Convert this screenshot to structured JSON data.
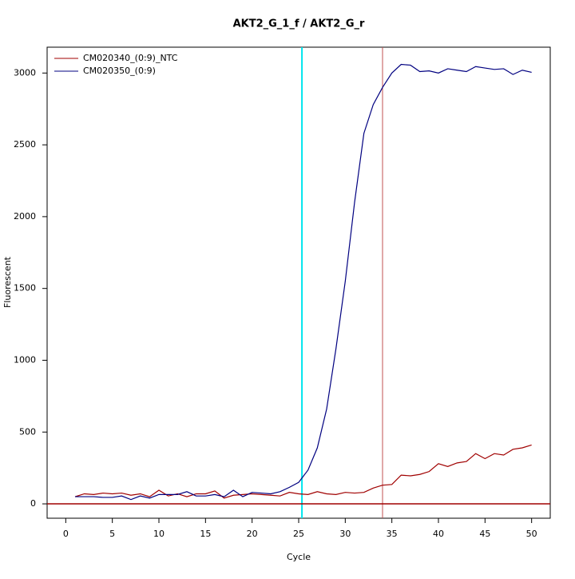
{
  "chart_data": {
    "type": "line",
    "title": "AKT2_G_1_f / AKT2_G_r",
    "x_label": "Cycle",
    "y_label": "Fluorescent",
    "x": [
      1,
      2,
      3,
      4,
      5,
      6,
      7,
      8,
      9,
      10,
      11,
      12,
      13,
      14,
      15,
      16,
      17,
      18,
      19,
      20,
      21,
      22,
      23,
      24,
      25,
      26,
      27,
      28,
      29,
      30,
      31,
      32,
      33,
      34,
      35,
      36,
      37,
      38,
      39,
      40,
      41,
      42,
      43,
      44,
      45,
      46,
      47,
      48,
      49,
      50
    ],
    "series": [
      {
        "name": "CM020340_(0:9)_NTC",
        "color": "#a00000",
        "values": [
          50,
          70,
          65,
          75,
          70,
          75,
          60,
          70,
          50,
          95,
          55,
          70,
          50,
          70,
          70,
          90,
          40,
          60,
          65,
          70,
          65,
          60,
          55,
          80,
          70,
          65,
          85,
          70,
          65,
          80,
          75,
          80,
          110,
          130,
          135,
          200,
          195,
          205,
          225,
          280,
          260,
          285,
          295,
          350,
          315,
          350,
          340,
          380,
          390,
          410
        ]
      },
      {
        "name": "CM020350_(0:9)",
        "color": "#000080",
        "values": [
          50,
          50,
          50,
          45,
          45,
          55,
          30,
          55,
          40,
          65,
          65,
          65,
          85,
          55,
          55,
          65,
          50,
          95,
          50,
          80,
          75,
          70,
          85,
          115,
          150,
          235,
          390,
          660,
          1080,
          1550,
          2100,
          2580,
          2780,
          2900,
          3000,
          3060,
          3055,
          3010,
          3015,
          3000,
          3030,
          3020,
          3010,
          3045,
          3035,
          3025,
          3030,
          2990,
          3020,
          3005
        ]
      }
    ],
    "reference_lines": [
      {
        "axis": "x",
        "value": 25.35,
        "color": "#00e5ee"
      },
      {
        "axis": "x",
        "value": 34,
        "color": "#c05050"
      },
      {
        "axis": "y",
        "value": 0,
        "color": "#a00000"
      }
    ],
    "xlim": [
      -2,
      52
    ],
    "xticks": [
      0,
      5,
      10,
      15,
      20,
      25,
      30,
      35,
      40,
      45,
      50
    ],
    "ylim": [
      -100,
      3180
    ],
    "yticks": [
      0,
      500,
      1000,
      1500,
      2000,
      2500,
      3000
    ],
    "legend": "top-left"
  }
}
